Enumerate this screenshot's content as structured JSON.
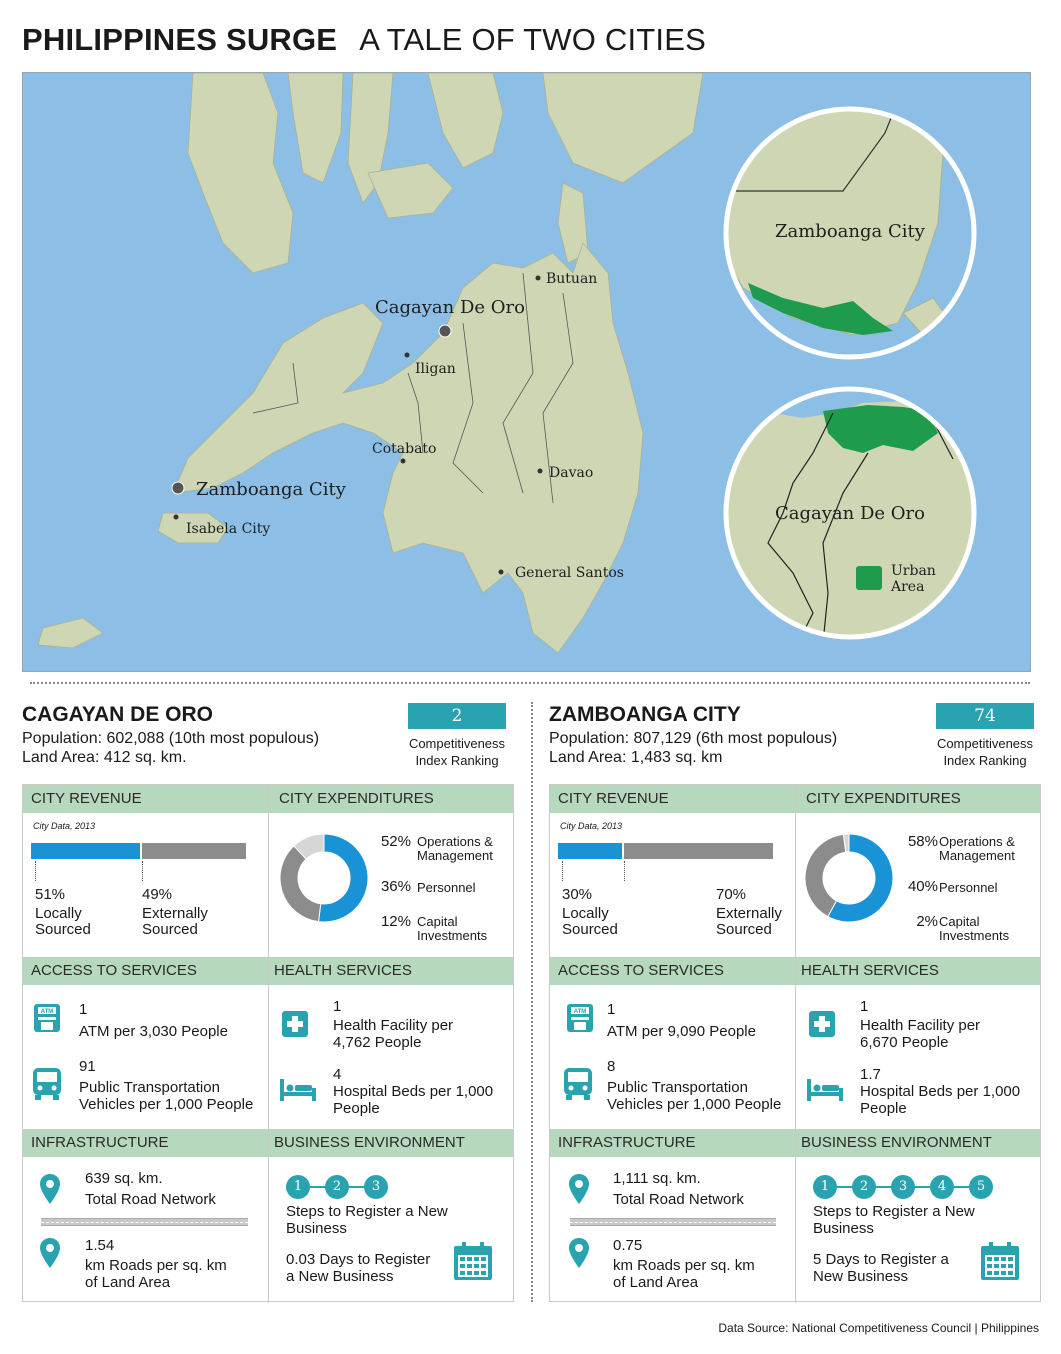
{
  "header": {
    "title_bold": "PHILIPPINES SURGE",
    "title_light": "A TALE OF TWO CITIES"
  },
  "map": {
    "labels": {
      "butuan": "Butuan",
      "cagayan": "Cagayan De Oro",
      "iligan": "Iligan",
      "cotabato": "Cotabato",
      "davao": "Davao",
      "zamboanga": "Zamboanga City",
      "isabela": "Isabela City",
      "gensan": "General Santos"
    },
    "inset_zamboanga": "Zamboanga City",
    "inset_cagayan": "Cagayan De Oro",
    "legend_urban_line1": "Urban",
    "legend_urban_line2": "Area",
    "colors": {
      "sea": "#8dbfe6",
      "land": "#cfd6b4",
      "urban": "#1e9b4c",
      "accent": "#2aa3b1",
      "revenue_local": "#1993d6",
      "revenue_external": "#8c8c8c"
    }
  },
  "band_labels": {
    "revenue": "CITY REVENUE",
    "expenditures": "CITY EXPENDITURES",
    "access": "ACCESS TO SERVICES",
    "health": "HEALTH SERVICES",
    "infrastructure": "INFRASTRUCTURE",
    "business": "BUSINESS ENVIRONMENT"
  },
  "cities": [
    {
      "name": "CAGAYAN DE ORO",
      "population": "Population: 602,088 (10th most populous)",
      "land_area": "Land Area: 412 sq. km.",
      "rank": "2",
      "rank_label_1": "Competitiveness",
      "rank_label_2": "Index Ranking",
      "revenue_note": "City Data, 2013",
      "revenue_local_pct": "51%",
      "revenue_external_pct": "49%",
      "revenue_local_value": 51,
      "revenue_local_l1": "Locally",
      "revenue_local_l2": "Sourced",
      "revenue_external_l1": "Externally",
      "revenue_external_l2": "Sourced",
      "exp": [
        {
          "pct": "52%",
          "value": 52,
          "l1": "Operations &",
          "l2": "Management",
          "color": "#1993d6"
        },
        {
          "pct": "36%",
          "value": 36,
          "l1": "Personnel",
          "l2": "",
          "color": "#8c8c8c"
        },
        {
          "pct": "12%",
          "value": 12,
          "l1": "Capital",
          "l2": "Investments",
          "color": "#d6d6d6"
        }
      ],
      "atm_num": "1",
      "atm_desc": "ATM per 3,030 People",
      "transport_num": "91",
      "transport_l1": "Public Transportation",
      "transport_l2": "Vehicles per 1,000 People",
      "health_num": "1",
      "health_l1": "Health Facility per",
      "health_l2": "4,762 People",
      "beds_num": "4",
      "beds_l1": "Hospital Beds per 1,000",
      "beds_l2": "People",
      "road_net_num": "639 sq. km.",
      "road_net_desc": "Total Road Network",
      "road_density_num": "1.54",
      "road_density_l1": "km Roads per sq. km",
      "road_density_l2": "of Land Area",
      "steps": [
        "1",
        "2",
        "3"
      ],
      "steps_l1": "Steps to Register a New",
      "steps_l2": "Business",
      "days_l1": "0.03 Days to Register",
      "days_l2": "a New Business"
    },
    {
      "name": "ZAMBOANGA CITY",
      "population": "Population: 807,129 (6th most populous)",
      "land_area": "Land Area: 1,483 sq. km",
      "rank": "74",
      "rank_label_1": "Competitiveness",
      "rank_label_2": "Index Ranking",
      "revenue_note": "City Data, 2013",
      "revenue_local_pct": "30%",
      "revenue_external_pct": "70%",
      "revenue_local_value": 30,
      "revenue_local_l1": "Locally",
      "revenue_local_l2": "Sourced",
      "revenue_external_l1": "Externally",
      "revenue_external_l2": "Sourced",
      "exp": [
        {
          "pct": "58%",
          "value": 58,
          "l1": "Operations &",
          "l2": "Management",
          "color": "#1993d6"
        },
        {
          "pct": "40%",
          "value": 40,
          "l1": "Personnel",
          "l2": "",
          "color": "#8c8c8c"
        },
        {
          "pct": "2%",
          "value": 2,
          "l1": "Capital",
          "l2": "Investments",
          "color": "#d6d6d6"
        }
      ],
      "atm_num": "1",
      "atm_desc": "ATM per 9,090 People",
      "transport_num": "8",
      "transport_l1": "Public Transportation",
      "transport_l2": "Vehicles per 1,000 People",
      "health_num": "1",
      "health_l1": "Health Facility per",
      "health_l2": "6,670 People",
      "beds_num": "1.7",
      "beds_l1": "Hospital Beds per 1,000",
      "beds_l2": "People",
      "road_net_num": "1,111 sq. km.",
      "road_net_desc": "Total Road Network",
      "road_density_num": "0.75",
      "road_density_l1": "km Roads per sq. km",
      "road_density_l2": "of Land Area",
      "steps": [
        "1",
        "2",
        "3",
        "4",
        "5"
      ],
      "steps_l1": "Steps to Register a New",
      "steps_l2": "Business",
      "days_l1": "5 Days to Register a",
      "days_l2": "New Business"
    }
  ],
  "source": "Data Source: National Competitiveness Council | Philippines"
}
